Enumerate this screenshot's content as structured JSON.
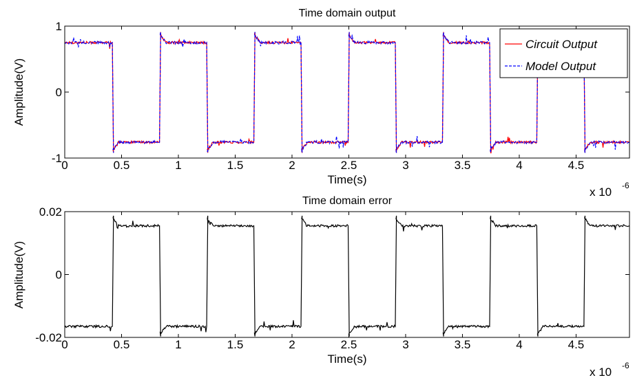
{
  "chart_data": [
    {
      "type": "line",
      "title": "Time domain output",
      "xlabel": "Time(s)",
      "ylabel": "Amplitude(V)",
      "x_multiplier_label": "x 10",
      "x_multiplier_exp": "-6",
      "xlim": [
        0,
        4.97
      ],
      "ylim": [
        -1,
        1
      ],
      "xticks": [
        0,
        0.5,
        1,
        1.5,
        2,
        2.5,
        3,
        3.5,
        4,
        4.5
      ],
      "xtick_labels": [
        "0",
        "0.5",
        "1",
        "1.5",
        "2",
        "2.5",
        "3",
        "3.5",
        "4",
        "4.5"
      ],
      "yticks": [
        -1,
        0,
        1
      ],
      "ytick_labels": [
        "-1",
        "0",
        "1"
      ],
      "legend_position": "top-right",
      "grid": false,
      "waveform": {
        "high_level": 0.75,
        "low_level": -0.76,
        "transitions_x": [
          0.425,
          0.84,
          1.255,
          1.67,
          2.085,
          2.5,
          2.915,
          3.33,
          3.745,
          4.16,
          4.575,
          4.97
        ],
        "start_level": "high"
      },
      "series": [
        {
          "name": "Circuit Output",
          "color": "#ff0000",
          "style": "solid"
        },
        {
          "name": "Model Output",
          "color": "#0000ff",
          "style": "dashed"
        }
      ]
    },
    {
      "type": "line",
      "title": "Time domain error",
      "xlabel": "Time(s)",
      "ylabel": "Amplitude(V)",
      "x_multiplier_label": "x 10",
      "x_multiplier_exp": "-6",
      "xlim": [
        0,
        4.97
      ],
      "ylim": [
        -0.02,
        0.02
      ],
      "xticks": [
        0,
        0.5,
        1,
        1.5,
        2,
        2.5,
        3,
        3.5,
        4,
        4.5
      ],
      "xtick_labels": [
        "0",
        "0.5",
        "1",
        "1.5",
        "2",
        "2.5",
        "3",
        "3.5",
        "4",
        "4.5"
      ],
      "yticks": [
        -0.02,
        0,
        0.02
      ],
      "ytick_labels": [
        "-0.02",
        "0",
        "0.02"
      ],
      "grid": false,
      "waveform": {
        "high_level": 0.0155,
        "low_level": -0.0165,
        "transitions_x": [
          0.425,
          0.84,
          1.255,
          1.67,
          2.085,
          2.5,
          2.915,
          3.33,
          3.745,
          4.16,
          4.575,
          4.97
        ],
        "start_level": "low"
      },
      "series": [
        {
          "color": "#000000",
          "style": "solid"
        }
      ]
    }
  ]
}
